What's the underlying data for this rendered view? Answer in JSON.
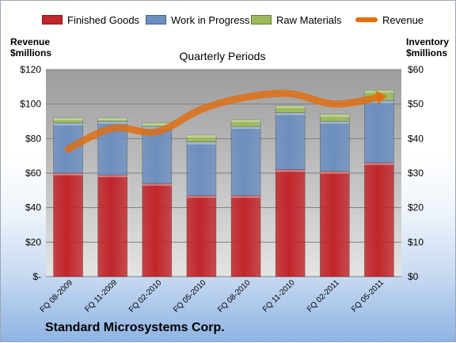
{
  "chart_data": {
    "type": "bar",
    "subtype": "stacked-bar-with-line",
    "title": "Quarterly Periods",
    "company": "Standard Microsystems Corp.",
    "left_axis": {
      "label_line1": "Revenue",
      "label_line2": "$millions",
      "min": 0,
      "max": 120,
      "step": 20,
      "ticks": [
        "$-",
        "$20",
        "$40",
        "$60",
        "$80",
        "$100",
        "$120"
      ]
    },
    "right_axis": {
      "label_line1": "Inventory",
      "label_line2": "$millions",
      "min": 0,
      "max": 60,
      "step": 10,
      "ticks": [
        "$0",
        "$10",
        "$20",
        "$30",
        "$40",
        "$50",
        "$60"
      ]
    },
    "categories": [
      "FQ 08-2009",
      "FQ 11-2009",
      "FQ 02-2010",
      "FQ 05-2010",
      "FQ 08-2010",
      "FQ 11-2010",
      "FQ 02-2011",
      "FQ 05-2011"
    ],
    "series": [
      {
        "name": "Finished Goods",
        "axis": "right",
        "kind": "bar",
        "color": "#c0262b",
        "values": [
          30,
          29.5,
          27,
          23.5,
          23.5,
          31,
          30.5,
          33
        ]
      },
      {
        "name": "Work in Progress",
        "axis": "right",
        "kind": "bar",
        "color": "#6d8fbf",
        "values": [
          14.5,
          15.5,
          16.5,
          15.5,
          20,
          16.5,
          14.5,
          18
        ]
      },
      {
        "name": "Raw Materials",
        "axis": "right",
        "kind": "bar",
        "color": "#9bbb59",
        "values": [
          1.5,
          1,
          1,
          2,
          2,
          2,
          2,
          3
        ]
      },
      {
        "name": "Revenue",
        "axis": "left",
        "kind": "line",
        "color": "#e46c0a",
        "values": [
          74,
          86,
          84,
          97,
          104,
          106,
          100,
          104
        ]
      }
    ],
    "grid": true,
    "legend_position": "top"
  }
}
